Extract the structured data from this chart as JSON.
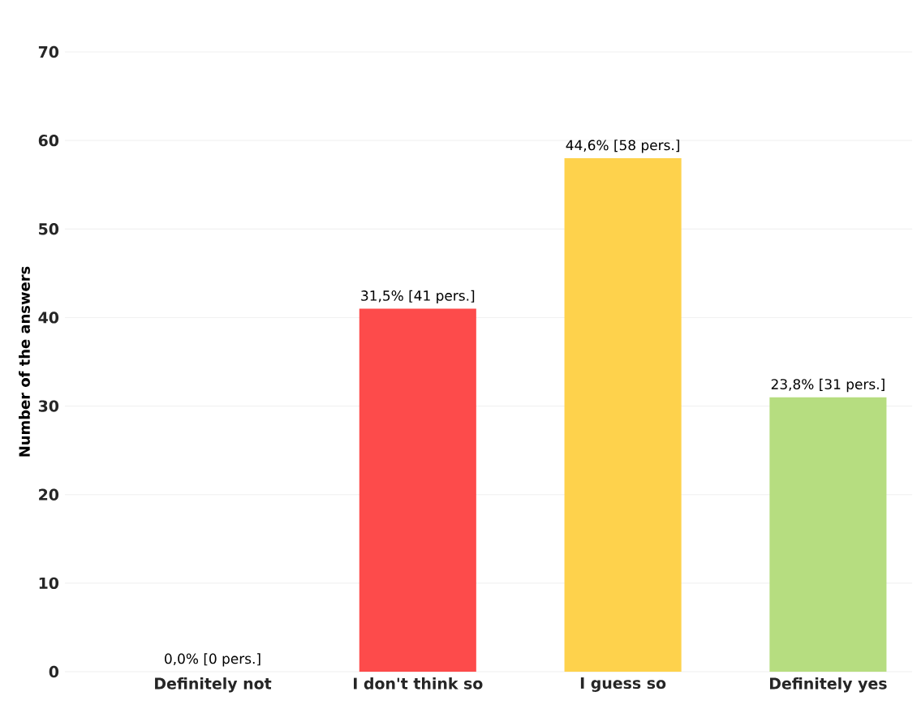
{
  "chart_data": {
    "type": "bar",
    "ylabel": "Number of the answers",
    "categories": [
      "Definitely not",
      "I don't think so",
      "I guess so",
      "Definitely yes"
    ],
    "values": [
      0,
      41,
      58,
      31
    ],
    "colors": [
      "#e0e0e0",
      "#fd4b4b",
      "#fed24c",
      "#b6dd80"
    ],
    "value_labels": [
      "0,0% [0 pers.]",
      "31,5% [41 pers.]",
      "44,6% [58 pers.]",
      "23,8% [31 pers.]"
    ],
    "ylim": [
      0,
      70
    ],
    "yticks": [
      0,
      10,
      20,
      30,
      40,
      50,
      60,
      70
    ],
    "grid": "y"
  }
}
